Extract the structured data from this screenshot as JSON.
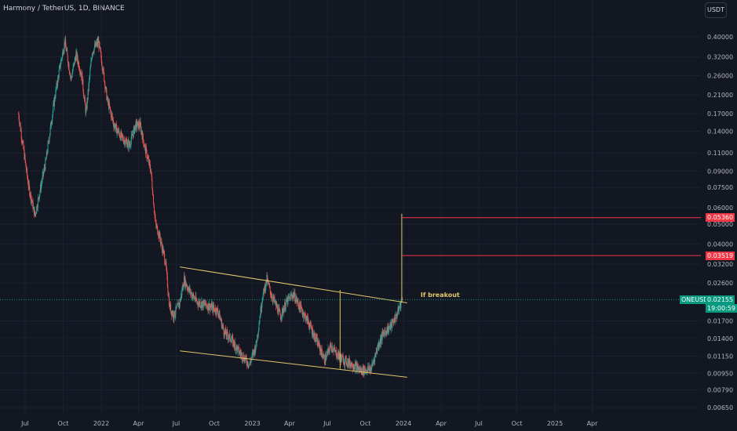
{
  "header": {
    "title": "Harmony / TetherUS, 1D, BINANCE",
    "currency_button": "USDT"
  },
  "chart_data": {
    "type": "candlestick",
    "title": "Harmony / TetherUS, 1D, BINANCE",
    "y_scale": "log",
    "y_ticks": [
      "0.40000",
      "0.32000",
      "0.26000",
      "0.21000",
      "0.17000",
      "0.14000",
      "0.11000",
      "0.09000",
      "0.07500",
      "0.06000",
      "0.05000",
      "0.04000",
      "0.03200",
      "0.02600",
      "0.01700",
      "0.01400",
      "0.01150",
      "0.00950",
      "0.00790",
      "0.00650"
    ],
    "x_ticks": [
      "Jul",
      "Oct",
      "2022",
      "Apr",
      "Jul",
      "Oct",
      "2023",
      "Apr",
      "Jul",
      "Oct",
      "2024",
      "Apr",
      "Jul",
      "Oct",
      "2025",
      "Apr"
    ],
    "price_path": [
      [
        "2021-06-15",
        0.17
      ],
      [
        "2021-07-10",
        0.075
      ],
      [
        "2021-07-25",
        0.055
      ],
      [
        "2021-08-20",
        0.1
      ],
      [
        "2021-09-10",
        0.2
      ],
      [
        "2021-09-25",
        0.3
      ],
      [
        "2021-10-05",
        0.38
      ],
      [
        "2021-10-20",
        0.25
      ],
      [
        "2021-11-01",
        0.33
      ],
      [
        "2021-11-15",
        0.26
      ],
      [
        "2021-11-25",
        0.17
      ],
      [
        "2021-12-10",
        0.34
      ],
      [
        "2021-12-25",
        0.38
      ],
      [
        "2022-01-05",
        0.28
      ],
      [
        "2022-01-15",
        0.2
      ],
      [
        "2022-02-01",
        0.15
      ],
      [
        "2022-02-20",
        0.13
      ],
      [
        "2022-03-10",
        0.12
      ],
      [
        "2022-03-25",
        0.15
      ],
      [
        "2022-04-05",
        0.15
      ],
      [
        "2022-04-15",
        0.12
      ],
      [
        "2022-05-01",
        0.09
      ],
      [
        "2022-05-12",
        0.05
      ],
      [
        "2022-05-20",
        0.045
      ],
      [
        "2022-06-05",
        0.033
      ],
      [
        "2022-06-15",
        0.02
      ],
      [
        "2022-06-25",
        0.018
      ],
      [
        "2022-07-10",
        0.021
      ],
      [
        "2022-07-20",
        0.027
      ],
      [
        "2022-08-01",
        0.024
      ],
      [
        "2022-08-20",
        0.021
      ],
      [
        "2022-09-20",
        0.02
      ],
      [
        "2022-10-10",
        0.019
      ],
      [
        "2022-10-25",
        0.015
      ],
      [
        "2022-11-10",
        0.014
      ],
      [
        "2022-12-01",
        0.012
      ],
      [
        "2022-12-25",
        0.0105
      ],
      [
        "2023-01-10",
        0.013
      ],
      [
        "2023-01-25",
        0.022
      ],
      [
        "2023-02-05",
        0.027
      ],
      [
        "2023-02-15",
        0.023
      ],
      [
        "2023-03-10",
        0.018
      ],
      [
        "2023-03-25",
        0.021
      ],
      [
        "2023-04-10",
        0.023
      ],
      [
        "2023-04-25",
        0.02
      ],
      [
        "2023-05-15",
        0.017
      ],
      [
        "2023-06-10",
        0.013
      ],
      [
        "2023-06-25",
        0.011
      ],
      [
        "2023-07-10",
        0.013
      ],
      [
        "2023-07-20",
        0.012
      ],
      [
        "2023-08-10",
        0.011
      ],
      [
        "2023-09-01",
        0.0105
      ],
      [
        "2023-09-20",
        0.0098
      ],
      [
        "2023-10-15",
        0.01
      ],
      [
        "2023-11-01",
        0.013
      ],
      [
        "2023-11-15",
        0.015
      ],
      [
        "2023-12-01",
        0.016
      ],
      [
        "2023-12-15",
        0.018
      ],
      [
        "2023-12-29",
        0.02155
      ]
    ],
    "trendlines": [
      {
        "name": "upper",
        "from": [
          "2022-07-10",
          0.031
        ],
        "to": [
          "2024-01-10",
          0.0208
        ]
      },
      {
        "name": "lower",
        "from": [
          "2022-07-10",
          0.0122
        ],
        "to": [
          "2024-01-10",
          0.0091
        ]
      }
    ],
    "vertical_segments": [
      {
        "at": "2023-08-01",
        "from": 0.01,
        "to": 0.024
      },
      {
        "at": "2023-12-28",
        "from": 0.021,
        "to": 0.056
      }
    ],
    "horizontal_levels": [
      {
        "value": 0.0536,
        "label": "0.05360",
        "color": "#f23645"
      },
      {
        "value": 0.03519,
        "label": "0.03519",
        "color": "#f23645"
      }
    ],
    "annotation": "If breakout",
    "last_price": {
      "symbol": "ONEUSDT",
      "value": "0.02155",
      "countdown": "19:00:59",
      "color": "#089981"
    }
  }
}
